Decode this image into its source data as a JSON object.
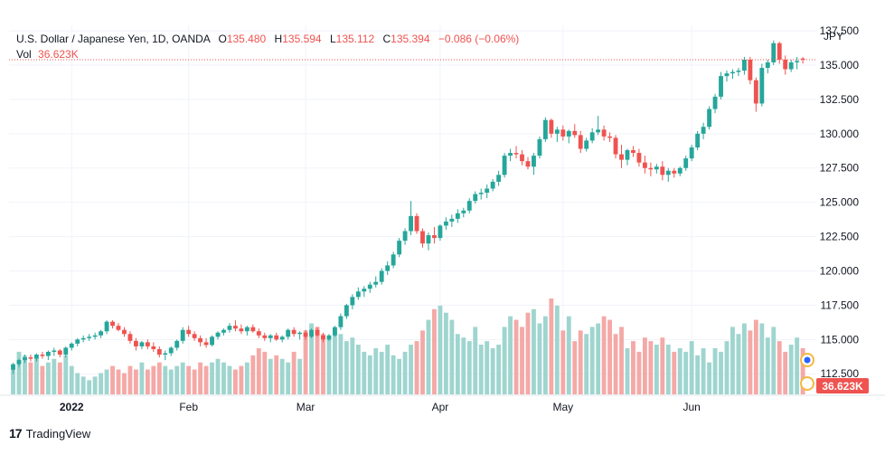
{
  "header": {
    "symbol": "U.S. Dollar / Japanese Yen, 1D, OANDA",
    "open_label": "O",
    "open": "135.480",
    "high_label": "H",
    "high": "135.594",
    "low_label": "L",
    "low": "135.112",
    "close_label": "C",
    "close": "135.394",
    "change": "−0.086 (−0.06%)",
    "vol_label": "Vol",
    "vol": "36.623K"
  },
  "branding": {
    "logo": "17",
    "name": "TradingView"
  },
  "colors": {
    "up": "#26a69a",
    "down": "#ef5350",
    "vol_up": "#9fd5cf",
    "vol_down": "#f4a9a7",
    "grid": "#f0f3fa",
    "axis_text": "#131722"
  },
  "chart_data": {
    "type": "candlestick",
    "currency_label": "JPY",
    "y_ticks": [
      "137.500",
      "135.000",
      "132.500",
      "130.000",
      "127.500",
      "125.000",
      "122.500",
      "120.000",
      "117.500",
      "115.000",
      "112.500"
    ],
    "ylim": [
      111.0,
      137.9
    ],
    "x_labels": [
      {
        "label": "2022",
        "index": 10
      },
      {
        "label": "Feb",
        "index": 30
      },
      {
        "label": "Mar",
        "index": 50
      },
      {
        "label": "Apr",
        "index": 73
      },
      {
        "label": "May",
        "index": 94
      },
      {
        "label": "Jun",
        "index": 116
      }
    ],
    "last_price": 135.394,
    "volume_label": "36.623K",
    "candles": [
      [
        112.8,
        113.3,
        112.5,
        113.2
      ],
      [
        113.2,
        113.6,
        113.0,
        113.5
      ],
      [
        113.5,
        113.9,
        113.3,
        113.7
      ],
      [
        113.7,
        113.9,
        113.4,
        113.6
      ],
      [
        113.6,
        114.0,
        113.4,
        113.9
      ],
      [
        113.9,
        114.1,
        113.6,
        113.8
      ],
      [
        113.8,
        114.2,
        113.5,
        114.1
      ],
      [
        114.1,
        114.4,
        113.8,
        114.2
      ],
      [
        114.2,
        114.3,
        113.7,
        113.9
      ],
      [
        113.9,
        114.5,
        113.7,
        114.4
      ],
      [
        114.4,
        114.8,
        114.2,
        114.7
      ],
      [
        114.7,
        115.1,
        114.5,
        115.0
      ],
      [
        115.0,
        115.3,
        114.8,
        115.1
      ],
      [
        115.1,
        115.4,
        114.9,
        115.2
      ],
      [
        115.2,
        115.5,
        115.0,
        115.3
      ],
      [
        115.3,
        115.7,
        115.1,
        115.6
      ],
      [
        115.6,
        116.4,
        115.4,
        116.3
      ],
      [
        116.3,
        116.4,
        115.8,
        116.0
      ],
      [
        116.0,
        116.2,
        115.6,
        115.7
      ],
      [
        115.7,
        115.9,
        115.2,
        115.4
      ],
      [
        115.4,
        115.6,
        114.7,
        114.9
      ],
      [
        114.9,
        115.1,
        114.2,
        114.5
      ],
      [
        114.5,
        114.9,
        114.3,
        114.8
      ],
      [
        114.8,
        115.0,
        114.3,
        114.5
      ],
      [
        114.5,
        114.8,
        114.1,
        114.3
      ],
      [
        114.3,
        114.5,
        113.7,
        113.9
      ],
      [
        113.9,
        114.2,
        113.5,
        114.0
      ],
      [
        114.0,
        114.5,
        113.8,
        114.4
      ],
      [
        114.4,
        115.0,
        114.2,
        114.9
      ],
      [
        114.9,
        115.9,
        114.7,
        115.7
      ],
      [
        115.7,
        116.0,
        115.2,
        115.4
      ],
      [
        115.4,
        115.6,
        114.9,
        115.1
      ],
      [
        115.1,
        115.3,
        114.5,
        114.8
      ],
      [
        114.8,
        115.1,
        114.4,
        114.6
      ],
      [
        114.6,
        115.3,
        114.5,
        115.2
      ],
      [
        115.2,
        115.6,
        115.0,
        115.5
      ],
      [
        115.5,
        115.8,
        115.3,
        115.7
      ],
      [
        115.7,
        116.2,
        115.5,
        116.0
      ],
      [
        116.0,
        116.4,
        115.6,
        115.8
      ],
      [
        115.8,
        116.1,
        115.4,
        115.6
      ],
      [
        115.6,
        116.0,
        115.3,
        115.9
      ],
      [
        115.9,
        116.1,
        115.5,
        115.6
      ],
      [
        115.6,
        115.8,
        115.1,
        115.3
      ],
      [
        115.3,
        115.5,
        114.9,
        115.1
      ],
      [
        115.1,
        115.4,
        114.8,
        115.3
      ],
      [
        115.3,
        115.5,
        114.9,
        115.0
      ],
      [
        115.0,
        115.3,
        114.8,
        115.2
      ],
      [
        115.2,
        115.8,
        115.0,
        115.7
      ],
      [
        115.7,
        115.9,
        115.2,
        115.4
      ],
      [
        115.4,
        115.6,
        115.0,
        115.5
      ],
      [
        115.5,
        115.7,
        115.0,
        115.2
      ],
      [
        115.2,
        115.8,
        115.1,
        115.7
      ],
      [
        115.7,
        115.9,
        115.2,
        115.3
      ],
      [
        115.3,
        115.5,
        114.8,
        115.0
      ],
      [
        115.0,
        115.4,
        114.9,
        115.3
      ],
      [
        115.3,
        116.0,
        115.2,
        115.9
      ],
      [
        115.9,
        116.9,
        115.7,
        116.7
      ],
      [
        116.7,
        117.6,
        116.5,
        117.5
      ],
      [
        117.5,
        118.3,
        117.2,
        118.1
      ],
      [
        118.1,
        118.8,
        117.9,
        118.5
      ],
      [
        118.5,
        118.9,
        118.1,
        118.7
      ],
      [
        118.7,
        119.2,
        118.4,
        119.0
      ],
      [
        119.0,
        119.6,
        118.8,
        119.2
      ],
      [
        119.2,
        120.2,
        119.0,
        120.0
      ],
      [
        120.0,
        120.7,
        119.7,
        120.4
      ],
      [
        120.4,
        121.4,
        120.2,
        121.2
      ],
      [
        121.2,
        122.4,
        121.0,
        122.2
      ],
      [
        122.2,
        123.1,
        121.9,
        122.9
      ],
      [
        122.9,
        125.1,
        122.6,
        124.0
      ],
      [
        124.0,
        124.2,
        122.7,
        122.9
      ],
      [
        122.9,
        123.1,
        121.7,
        122.0
      ],
      [
        122.0,
        122.8,
        121.5,
        122.6
      ],
      [
        122.6,
        123.2,
        122.0,
        122.4
      ],
      [
        122.4,
        123.4,
        122.2,
        123.3
      ],
      [
        123.3,
        123.9,
        123.0,
        123.6
      ],
      [
        123.6,
        124.1,
        123.2,
        123.8
      ],
      [
        123.8,
        124.5,
        123.5,
        124.2
      ],
      [
        124.2,
        124.6,
        123.9,
        124.4
      ],
      [
        124.4,
        125.3,
        124.2,
        125.1
      ],
      [
        125.1,
        125.8,
        124.9,
        125.6
      ],
      [
        125.6,
        126.0,
        125.2,
        125.7
      ],
      [
        125.7,
        126.3,
        125.3,
        126.0
      ],
      [
        126.0,
        126.7,
        125.8,
        126.5
      ],
      [
        126.5,
        127.3,
        126.2,
        127.0
      ],
      [
        127.0,
        128.6,
        126.8,
        128.4
      ],
      [
        128.4,
        128.9,
        128.0,
        128.6
      ],
      [
        128.6,
        129.1,
        128.2,
        128.5
      ],
      [
        128.5,
        128.8,
        127.7,
        128.0
      ],
      [
        128.0,
        128.3,
        127.4,
        127.6
      ],
      [
        127.6,
        128.6,
        127.0,
        128.4
      ],
      [
        128.4,
        129.8,
        128.2,
        129.6
      ],
      [
        129.6,
        131.2,
        129.4,
        131.0
      ],
      [
        131.0,
        131.1,
        129.7,
        130.0
      ],
      [
        130.0,
        130.5,
        129.4,
        130.3
      ],
      [
        130.3,
        130.6,
        129.5,
        129.8
      ],
      [
        129.8,
        130.3,
        129.3,
        130.2
      ],
      [
        130.2,
        130.7,
        129.7,
        129.9
      ],
      [
        129.9,
        130.2,
        128.6,
        128.9
      ],
      [
        128.9,
        129.7,
        128.7,
        129.5
      ],
      [
        129.5,
        130.4,
        129.3,
        130.1
      ],
      [
        130.1,
        131.3,
        129.9,
        130.3
      ],
      [
        130.3,
        130.6,
        129.5,
        129.8
      ],
      [
        129.8,
        130.1,
        129.4,
        129.7
      ],
      [
        129.7,
        129.9,
        128.2,
        128.5
      ],
      [
        128.5,
        129.2,
        127.5,
        128.1
      ],
      [
        128.1,
        128.9,
        127.7,
        128.8
      ],
      [
        128.8,
        129.1,
        128.3,
        128.6
      ],
      [
        128.6,
        128.9,
        127.6,
        127.9
      ],
      [
        127.9,
        128.4,
        127.1,
        127.5
      ],
      [
        127.5,
        127.9,
        126.9,
        127.4
      ],
      [
        127.4,
        127.8,
        127.1,
        127.6
      ],
      [
        127.6,
        128.0,
        126.6,
        127.0
      ],
      [
        127.0,
        127.5,
        126.5,
        127.3
      ],
      [
        127.3,
        127.5,
        126.8,
        127.1
      ],
      [
        127.1,
        127.6,
        126.9,
        127.5
      ],
      [
        127.5,
        128.4,
        127.3,
        128.2
      ],
      [
        128.2,
        129.2,
        128.0,
        129.0
      ],
      [
        129.0,
        130.2,
        128.8,
        130.0
      ],
      [
        130.0,
        130.8,
        129.6,
        130.5
      ],
      [
        130.5,
        132.0,
        130.3,
        131.8
      ],
      [
        131.8,
        132.9,
        131.5,
        132.7
      ],
      [
        132.7,
        134.5,
        132.5,
        134.2
      ],
      [
        134.2,
        134.6,
        133.8,
        134.4
      ],
      [
        134.4,
        134.7,
        134.0,
        134.5
      ],
      [
        134.5,
        134.8,
        134.2,
        134.6
      ],
      [
        134.6,
        135.6,
        134.3,
        135.4
      ],
      [
        135.4,
        135.6,
        133.6,
        133.9
      ],
      [
        133.9,
        134.1,
        131.6,
        132.2
      ],
      [
        132.2,
        135.1,
        132.0,
        134.8
      ],
      [
        134.8,
        135.4,
        134.4,
        135.2
      ],
      [
        135.2,
        136.8,
        135.0,
        136.6
      ],
      [
        136.6,
        136.7,
        135.1,
        135.4
      ],
      [
        135.4,
        135.7,
        134.3,
        134.7
      ],
      [
        134.7,
        135.4,
        134.5,
        135.2
      ],
      [
        135.2,
        135.6,
        134.7,
        135.3
      ],
      [
        135.48,
        135.594,
        135.112,
        135.394
      ]
    ],
    "volumes": [
      7,
      12,
      11,
      9,
      10,
      8,
      9,
      10,
      9,
      11,
      8,
      6,
      5,
      4,
      5,
      6,
      7,
      8,
      7,
      6,
      8,
      7,
      9,
      7,
      8,
      9,
      8,
      7,
      8,
      9,
      8,
      7,
      9,
      8,
      9,
      10,
      9,
      8,
      7,
      8,
      9,
      11,
      13,
      12,
      10,
      11,
      10,
      9,
      12,
      10,
      18,
      20,
      19,
      17,
      16,
      18,
      17,
      15,
      16,
      14,
      12,
      11,
      13,
      12,
      14,
      11,
      10,
      12,
      14,
      15,
      18,
      21,
      24,
      25,
      23,
      21,
      17,
      16,
      15,
      19,
      14,
      15,
      13,
      14,
      19,
      22,
      21,
      19,
      23,
      24,
      20,
      22,
      27,
      25,
      18,
      22,
      15,
      18,
      17,
      19,
      20,
      22,
      21,
      17,
      19,
      13,
      15,
      12,
      16,
      15,
      14,
      16,
      14,
      12,
      13,
      12,
      15,
      11,
      13,
      9,
      13,
      12,
      15,
      19,
      17,
      20,
      18,
      21,
      20,
      16,
      19,
      15,
      12,
      14,
      16,
      13
    ]
  }
}
